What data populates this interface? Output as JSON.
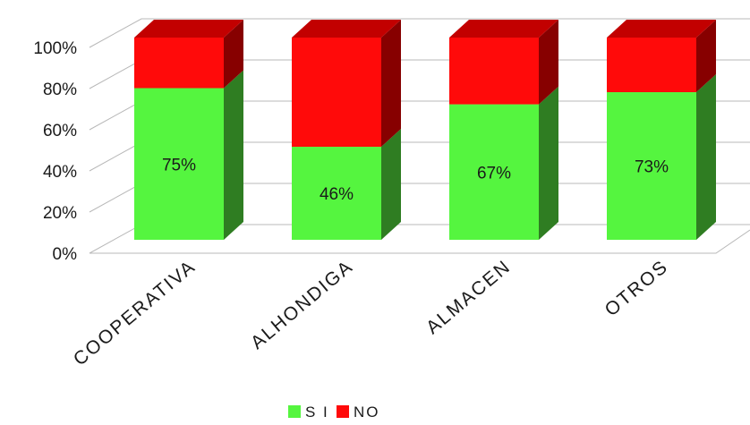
{
  "chart_data": {
    "type": "bar",
    "stacked": true,
    "percent": true,
    "categories": [
      "COOPERATIVA",
      "ALHONDIGA",
      "ALMACEN",
      "OTROS"
    ],
    "series": [
      {
        "name": "S I",
        "values": [
          75,
          46,
          67,
          73
        ],
        "color": "#55f53f",
        "side_color": "#2f7d22",
        "top_color": "#43c232"
      },
      {
        "name": "NO",
        "values": [
          25,
          54,
          33,
          27
        ],
        "color": "#ff0a0a",
        "side_color": "#870000",
        "top_color": "#c20000"
      }
    ],
    "data_labels": [
      "75%",
      "46%",
      "67%",
      "73%"
    ],
    "yticks": [
      "0%",
      "20%",
      "40%",
      "60%",
      "80%",
      "100%"
    ],
    "ylim": [
      0,
      100
    ],
    "grid": true,
    "legend": "bottom-center"
  }
}
